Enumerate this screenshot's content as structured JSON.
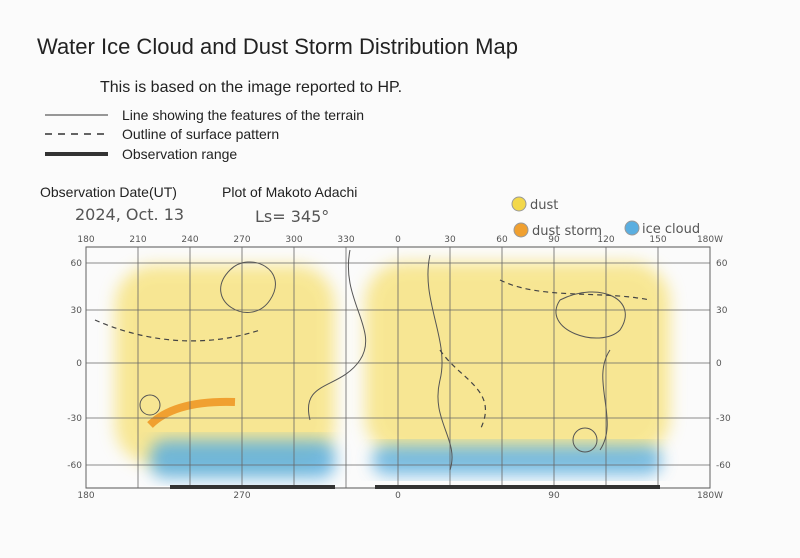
{
  "header": {
    "title": "Water Ice Cloud and Dust Storm Distribution Map",
    "subtitle": "This is based on the image reported to HP."
  },
  "legend": {
    "items": [
      "Line showing the features of the terrain",
      "Outline of surface pattern",
      "Observation range"
    ]
  },
  "observation": {
    "date_label": "Observation Date(UT)",
    "date": "2024, Oct. 13",
    "plot_label": "Plot of Makoto Adachi",
    "ls": "Ls= 345°"
  },
  "key": {
    "dust": "dust",
    "dust_storm": "dust storm",
    "ice_cloud": "ice cloud"
  },
  "map": {
    "top_labels": [
      "180",
      "210",
      "240",
      "270",
      "300",
      "330",
      "0",
      "30",
      "60",
      "90",
      "120",
      "150",
      "180W"
    ],
    "left_labels": [
      "60",
      "30",
      "0",
      "-30",
      "-60"
    ],
    "right_labels": [
      "60",
      "30",
      "0",
      "-30",
      "-60"
    ],
    "bottom_labels": [
      "180",
      "270",
      "0",
      "90",
      "180W"
    ]
  }
}
